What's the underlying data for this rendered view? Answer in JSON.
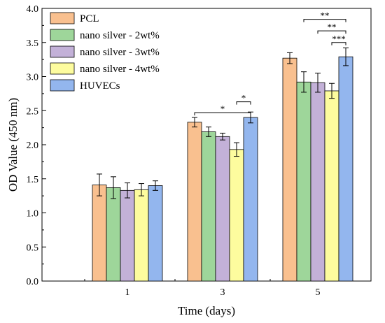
{
  "chart_data": {
    "type": "bar",
    "xlabel": "Time (days)",
    "ylabel": "OD Value (450 nm)",
    "ylim": [
      0,
      4.0
    ],
    "yticks": [
      "0.0",
      "0.5",
      "1.0",
      "1.5",
      "2.0",
      "2.5",
      "3.0",
      "3.5",
      "4.0"
    ],
    "categories": [
      "1",
      "3",
      "5"
    ],
    "legend_position": "top-left",
    "series": [
      {
        "name": "PCL",
        "color": "#F9C08F",
        "values": [
          1.41,
          2.33,
          3.27
        ],
        "errors": [
          0.16,
          0.07,
          0.08
        ]
      },
      {
        "name": "nano silver - 2wt%",
        "color": "#9ED69A",
        "values": [
          1.37,
          2.19,
          2.92
        ],
        "errors": [
          0.16,
          0.07,
          0.15
        ]
      },
      {
        "name": "nano silver - 3wt%",
        "color": "#C3B1D8",
        "values": [
          1.33,
          2.12,
          2.91
        ],
        "errors": [
          0.11,
          0.05,
          0.14
        ]
      },
      {
        "name": "nano silver - 4wt%",
        "color": "#FDFC9E",
        "values": [
          1.34,
          1.93,
          2.79
        ],
        "errors": [
          0.09,
          0.1,
          0.11
        ]
      },
      {
        "name": "HUVECs",
        "color": "#93B6EE",
        "values": [
          1.4,
          2.4,
          3.29
        ],
        "errors": [
          0.07,
          0.08,
          0.13
        ]
      }
    ],
    "significance": [
      {
        "category": 1,
        "from": 0,
        "to": 4,
        "label": "*",
        "level": 2.47
      },
      {
        "category": 1,
        "from": 3,
        "to": 4,
        "label": "*",
        "level": 2.63
      },
      {
        "category": 2,
        "from": 1,
        "to": 4,
        "label": "**",
        "level": 3.84
      },
      {
        "category": 2,
        "from": 2,
        "to": 4,
        "label": "**",
        "level": 3.67
      },
      {
        "category": 2,
        "from": 3,
        "to": 4,
        "label": "***",
        "level": 3.5
      }
    ]
  }
}
